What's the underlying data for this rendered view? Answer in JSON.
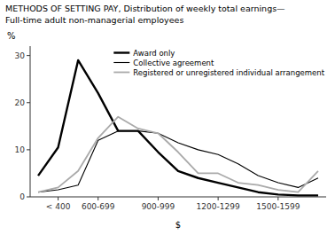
{
  "chart_data": {
    "type": "line",
    "title": "METHODS OF SETTING PAY, Distribution of weekly total earnings—",
    "subtitle": "Full-time adult non-managerial employees",
    "xlabel": "$",
    "ylabel": "%",
    "categories": [
      null,
      "< 400",
      null,
      "600-699",
      null,
      null,
      "900-999",
      null,
      null,
      "1200-1299",
      null,
      null,
      "1500-1599",
      null,
      null
    ],
    "ylim": [
      0,
      32
    ],
    "yticks": [
      0,
      10,
      20,
      30
    ],
    "grid": false,
    "legend": "upper right",
    "series": [
      {
        "name": "Award only",
        "color": "#000000",
        "values": [
          4.5,
          10.5,
          29.0,
          22.0,
          14.0,
          14.0,
          9.5,
          5.5,
          4.0,
          3.0,
          2.0,
          1.0,
          0.5,
          0.3,
          0.3
        ]
      },
      {
        "name": "Collective agreement",
        "color": "#000000",
        "values": [
          1.0,
          1.5,
          2.5,
          12.0,
          14.0,
          14.0,
          13.5,
          11.5,
          10.0,
          9.0,
          7.0,
          4.5,
          3.0,
          2.0,
          4.0
        ]
      },
      {
        "name": "Registered or unregistered individual arrangement",
        "color": "#aaaaaa",
        "values": [
          1.0,
          2.0,
          5.5,
          12.5,
          17.0,
          14.5,
          13.5,
          9.5,
          5.0,
          5.0,
          3.0,
          2.5,
          1.5,
          1.0,
          5.5
        ]
      }
    ]
  }
}
